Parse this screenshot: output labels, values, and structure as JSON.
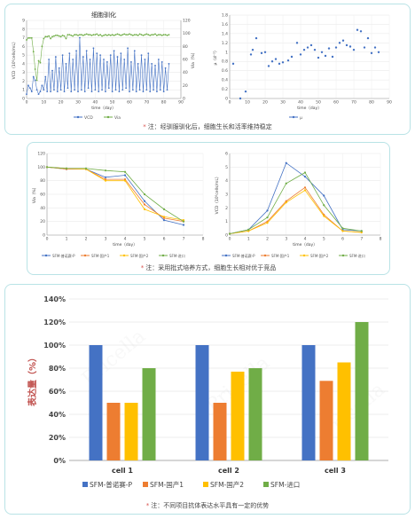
{
  "panels": [
    {
      "note": "注：经驯服驯化后，细胞生长和活率维持稳定",
      "charts": [
        "c1",
        "c2"
      ]
    },
    {
      "note": "注：采用批式培养方式，细胞生长相对优于竞品",
      "charts": [
        "c3",
        "c4"
      ]
    },
    {
      "note": "注：不同项目抗体表达水平具有一定的优势",
      "charts": [
        "c5"
      ]
    }
  ],
  "colors": {
    "blue": "#4472c4",
    "green": "#70ad47",
    "orange": "#ed7d31",
    "yellow": "#ffc000",
    "teal_border": "#b9e3e6"
  },
  "chart_data": [
    {
      "id": "c1",
      "type": "line",
      "title": "细胞驯化",
      "xlabel": "time（day）",
      "ylabel": "VCD（10⁶cells/mL）",
      "y2label": "Via（%）",
      "xlim": [
        0,
        90
      ],
      "xticks": [
        0,
        10,
        20,
        30,
        40,
        50,
        60,
        70,
        80,
        90
      ],
      "ylim": [
        0,
        9
      ],
      "yticks": [
        0,
        1,
        2,
        3,
        4,
        5,
        6,
        7,
        8,
        9
      ],
      "y2lim": [
        0,
        120
      ],
      "y2ticks": [
        0,
        20,
        40,
        60,
        80,
        100,
        120
      ],
      "series": [
        {
          "name": "VCD",
          "axis": "left",
          "color": "#4472c4",
          "x": [
            0,
            1,
            2,
            3,
            4,
            5,
            6,
            7,
            8,
            9,
            10,
            11,
            12,
            13,
            14,
            15,
            16,
            17,
            18,
            19,
            20,
            21,
            22,
            23,
            24,
            25,
            26,
            27,
            28,
            29,
            30,
            31,
            32,
            33,
            34,
            35,
            36,
            37,
            38,
            39,
            40,
            41,
            42,
            43,
            44,
            45,
            46,
            47,
            48,
            49,
            50,
            51,
            52,
            53,
            54,
            55,
            56,
            57,
            58,
            59,
            60,
            61,
            62,
            63,
            64,
            65,
            66,
            67,
            68,
            69,
            70,
            71,
            72,
            73,
            74,
            75,
            76,
            77,
            78,
            79,
            80,
            81,
            82,
            83
          ],
          "y": [
            0.5,
            1.5,
            1.2,
            0.8,
            2.5,
            2.1,
            1.0,
            0.5,
            0.8,
            1.5,
            1.0,
            2.5,
            0.8,
            4.5,
            0.8,
            3.2,
            1.0,
            4.8,
            0.8,
            3.5,
            1.0,
            5.0,
            0.8,
            4.0,
            1.2,
            5.2,
            0.8,
            4.5,
            1.0,
            5.5,
            0.8,
            7.0,
            1.0,
            4.8,
            0.8,
            5.5,
            1.2,
            4.5,
            0.8,
            5.8,
            1.0,
            5.2,
            0.8,
            5.0,
            1.0,
            4.5,
            0.8,
            4.2,
            1.2,
            5.0,
            0.8,
            5.5,
            1.0,
            4.8,
            0.8,
            5.2,
            1.0,
            4.5,
            1.2,
            5.8,
            0.8,
            4.2,
            1.0,
            5.5,
            0.8,
            4.0,
            1.0,
            5.0,
            0.8,
            4.5,
            1.0,
            5.2,
            0.8,
            4.0,
            1.0,
            3.8,
            0.8,
            4.5,
            1.0,
            4.2,
            0.8,
            3.5,
            1.0,
            4.0
          ]
        },
        {
          "name": "Via",
          "axis": "right",
          "color": "#70ad47",
          "x": [
            0,
            1,
            2,
            3,
            4,
            5,
            6,
            7,
            8,
            9,
            10,
            11,
            12,
            13,
            14,
            15,
            16,
            17,
            18,
            19,
            20,
            21,
            22,
            23,
            24,
            25,
            26,
            27,
            28,
            29,
            30,
            31,
            32,
            33,
            34,
            35,
            36,
            37,
            38,
            39,
            40,
            41,
            42,
            43,
            44,
            45,
            46,
            47,
            48,
            49,
            50,
            51,
            52,
            53,
            54,
            55,
            56,
            57,
            58,
            59,
            60,
            61,
            62,
            63,
            64,
            65,
            66,
            67,
            68,
            69,
            70,
            71,
            72,
            73,
            74,
            75,
            76,
            77,
            78,
            79,
            80,
            81,
            82,
            83
          ],
          "y": [
            90,
            93,
            93,
            93,
            72,
            45,
            28,
            58,
            55,
            80,
            92,
            95,
            95,
            96,
            92,
            95,
            96,
            97,
            97,
            96,
            95,
            97,
            96,
            92,
            98,
            98,
            97,
            96,
            98,
            98,
            97,
            98,
            98,
            97,
            98,
            99,
            98,
            98,
            97,
            98,
            98,
            99,
            97,
            98,
            96,
            97,
            98,
            97,
            98,
            97,
            98,
            97,
            98,
            99,
            98,
            97,
            98,
            99,
            98,
            98,
            99,
            98,
            97,
            98,
            98,
            97,
            99,
            98,
            97,
            98,
            99,
            98,
            97,
            98,
            98,
            99,
            97,
            98,
            98,
            97,
            98,
            98,
            97,
            98
          ]
        }
      ],
      "legend": [
        "VCD",
        "Via"
      ],
      "legend_position": "bottom"
    },
    {
      "id": "c2",
      "type": "scatter",
      "title": "",
      "xlabel": "time（day）",
      "ylabel": "μ（d⁻¹）",
      "xlim": [
        0,
        90
      ],
      "xticks": [
        0,
        10,
        20,
        30,
        40,
        50,
        60,
        70,
        80,
        90
      ],
      "ylim": [
        0,
        1.8
      ],
      "yticks": [
        0,
        0.2,
        0.4,
        0.6,
        0.8,
        1.0,
        1.2,
        1.4,
        1.6,
        1.8
      ],
      "series": [
        {
          "name": "μ",
          "color": "#4472c4",
          "x": [
            2,
            6,
            9,
            12,
            13,
            15,
            18,
            20,
            22,
            24,
            26,
            28,
            30,
            33,
            35,
            38,
            40,
            42,
            44,
            46,
            48,
            50,
            52,
            54,
            56,
            58,
            60,
            62,
            64,
            66,
            68,
            70,
            72,
            74,
            76,
            78,
            80,
            82,
            84
          ],
          "y": [
            0.75,
            0.0,
            0.15,
            0.95,
            1.05,
            1.3,
            0.98,
            1.0,
            0.7,
            0.8,
            0.85,
            0.75,
            0.78,
            0.82,
            0.9,
            1.2,
            0.95,
            1.05,
            1.1,
            1.15,
            1.05,
            0.88,
            1.0,
            0.92,
            1.08,
            0.9,
            1.1,
            1.2,
            1.25,
            1.15,
            1.12,
            1.05,
            1.48,
            1.45,
            1.1,
            1.3,
            0.98,
            1.1,
            1.0
          ]
        }
      ],
      "legend": [
        "μ"
      ],
      "legend_position": "bottom"
    },
    {
      "id": "c3",
      "type": "line",
      "title": "",
      "xlabel": "time（day）",
      "ylabel": "Via（%）",
      "xlim": [
        0,
        8
      ],
      "xticks": [
        0,
        1,
        2,
        3,
        4,
        5,
        6,
        7,
        8
      ],
      "ylim": [
        0,
        120
      ],
      "yticks": [
        0,
        20,
        40,
        60,
        80,
        100,
        120
      ],
      "categories": [
        0,
        1,
        2,
        3,
        4,
        5,
        6,
        7
      ],
      "series": [
        {
          "name": "SFM-普诺赛-P",
          "color": "#4472c4",
          "values": [
            100,
            97,
            97,
            85,
            88,
            50,
            22,
            15
          ]
        },
        {
          "name": "SFM-国产1",
          "color": "#ed7d31",
          "values": [
            100,
            97,
            97,
            82,
            82,
            45,
            25,
            20
          ]
        },
        {
          "name": "SFM-国产2",
          "color": "#ffc000",
          "values": [
            100,
            98,
            97,
            80,
            80,
            38,
            27,
            22
          ]
        },
        {
          "name": "SFM-进口",
          "color": "#70ad47",
          "values": [
            100,
            98,
            98,
            95,
            93,
            60,
            38,
            20
          ]
        }
      ],
      "legend": [
        "SFM-普诺赛-P",
        "SFM-国产1",
        "SFM-国产2",
        "SFM-进口"
      ],
      "legend_position": "bottom"
    },
    {
      "id": "c4",
      "type": "line",
      "title": "",
      "xlabel": "time（day）",
      "ylabel": "VCD（10⁶cells/mL）",
      "xlim": [
        0,
        8
      ],
      "xticks": [
        0,
        1,
        2,
        3,
        4,
        5,
        6,
        7,
        8
      ],
      "ylim": [
        0,
        6
      ],
      "yticks": [
        0,
        1,
        2,
        3,
        4,
        5,
        6
      ],
      "categories": [
        0,
        1,
        2,
        3,
        4,
        5,
        6,
        7
      ],
      "series": [
        {
          "name": "SFM-普诺赛-P",
          "color": "#4472c4",
          "values": [
            0.1,
            0.4,
            1.8,
            5.3,
            4.3,
            2.9,
            0.4,
            0.3
          ]
        },
        {
          "name": "SFM-国产1",
          "color": "#ed7d31",
          "values": [
            0.1,
            0.3,
            1.0,
            2.5,
            3.5,
            1.5,
            0.3,
            0.2
          ]
        },
        {
          "name": "SFM-国产2",
          "color": "#ffc000",
          "values": [
            0.1,
            0.3,
            0.9,
            2.4,
            3.3,
            1.4,
            0.3,
            0.2
          ]
        },
        {
          "name": "SFM-进口",
          "color": "#70ad47",
          "values": [
            0.1,
            0.4,
            1.3,
            3.8,
            4.6,
            2.2,
            0.5,
            0.3
          ]
        }
      ],
      "legend": [
        "SFM-普诺赛-P",
        "SFM-国产1",
        "SFM-国产2",
        "SFM-进口"
      ],
      "legend_position": "bottom"
    },
    {
      "id": "c5",
      "type": "bar",
      "title": "",
      "xlabel": "",
      "ylabel": "表达量（%）",
      "ylim": [
        0,
        140
      ],
      "yticks": [
        0,
        20,
        40,
        60,
        80,
        100,
        120,
        140
      ],
      "ytick_suffix": "%",
      "categories": [
        "cell 1",
        "cell 2",
        "cell 3"
      ],
      "series": [
        {
          "name": "SFM-普诺赛-P",
          "color": "#4472c4",
          "values": [
            100,
            100,
            100
          ]
        },
        {
          "name": "SFM-国产1",
          "color": "#ed7d31",
          "values": [
            50,
            50,
            69
          ]
        },
        {
          "name": "SFM-国产2",
          "color": "#ffc000",
          "values": [
            50,
            77,
            85
          ]
        },
        {
          "name": "SFM-进口",
          "color": "#70ad47",
          "values": [
            80,
            80,
            120
          ]
        }
      ],
      "legend": [
        "SFM-普诺赛-P",
        "SFM-国产1",
        "SFM-国产2",
        "SFM-进口"
      ],
      "legend_position": "bottom"
    }
  ]
}
